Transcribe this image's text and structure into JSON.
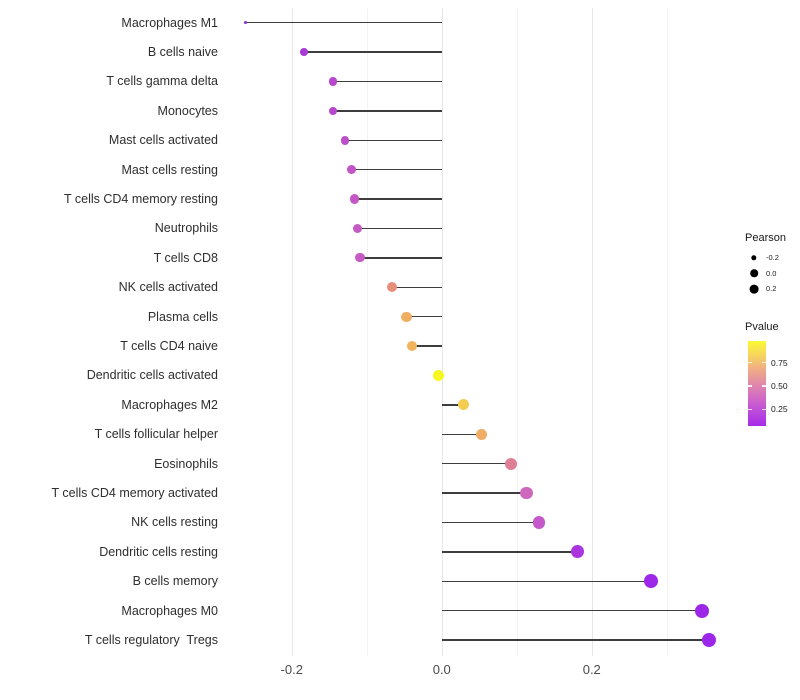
{
  "chart_data": {
    "type": "lollipop",
    "title": "",
    "xlabel": "",
    "ylabel": "",
    "orientation": "horizontal",
    "categories": [
      "Macrophages M1",
      "B cells naive",
      "T cells gamma delta",
      "Monocytes",
      "Mast cells activated",
      "Mast cells resting",
      "T cells CD4 memory resting",
      "Neutrophils",
      "T cells CD8",
      "NK cells activated",
      "Plasma cells",
      "T cells CD4 naive",
      "Dendritic cells activated",
      "Macrophages M2",
      "T cells follicular helper",
      "Eosinophils",
      "T cells CD4 memory activated",
      "NK cells resting",
      "Dendritic cells resting",
      "B cells memory",
      "Macrophages M0",
      "T cells regulatory  Tregs"
    ],
    "values": [
      -0.262,
      -0.184,
      -0.145,
      -0.145,
      -0.129,
      -0.12,
      -0.116,
      -0.112,
      -0.109,
      -0.066,
      -0.047,
      -0.04,
      -0.004,
      0.029,
      0.053,
      0.092,
      0.113,
      0.13,
      0.181,
      0.279,
      0.347,
      0.356
    ],
    "point_colors": [
      "#8E2ADA",
      "#A83BD4",
      "#B747CF",
      "#B646CD",
      "#BD4FC9",
      "#C154C6",
      "#C357C4",
      "#C55AC3",
      "#C55BC2",
      "#E68F7B",
      "#F0AE62",
      "#F1B45B",
      "#F6F722",
      "#F4CD50",
      "#F0AD66",
      "#DD8095",
      "#CE68BE",
      "#C558CB",
      "#AB36DF",
      "#9D28E8",
      "#9C27E9",
      "#9C27E9"
    ],
    "stem_color": "#3d3d3d",
    "baseline": 0,
    "xlim": [
      -0.293,
      0.387
    ],
    "x_major_ticks": [
      {
        "value": -0.2,
        "label": "-0.2"
      },
      {
        "value": 0.0,
        "label": "0.0"
      },
      {
        "value": 0.2,
        "label": "0.2"
      }
    ],
    "x_minor_ticks": [
      -0.1,
      0.1,
      0.3
    ],
    "grid": true,
    "legend": {
      "size": {
        "title": "Pearson",
        "entries": [
          {
            "label": "-0.2",
            "radius": 2.7
          },
          {
            "label": "0.0",
            "radius": 3.8
          },
          {
            "label": "0.2",
            "radius": 4.4
          }
        ],
        "swatch_color": "#000000"
      },
      "color": {
        "title": "Pvalue",
        "ticks": [
          {
            "label": "0.75",
            "frac_from_top": 0.26
          },
          {
            "label": "0.50",
            "frac_from_top": 0.535
          },
          {
            "label": "0.25",
            "frac_from_top": 0.81
          }
        ],
        "gradient_top_to_bottom": [
          "#FBF933",
          "#F7D55E",
          "#F0AC85",
          "#E18BA8",
          "#D26BC4",
          "#BC49DC",
          "#A62CE9"
        ]
      }
    }
  }
}
